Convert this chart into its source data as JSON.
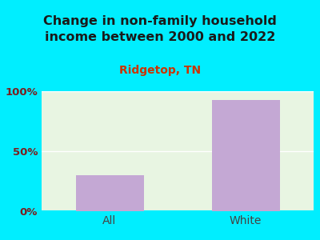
{
  "title": "Change in non-family household\nincome between 2000 and 2022",
  "subtitle": "Ridgetop, TN",
  "categories": [
    "All",
    "White"
  ],
  "values": [
    30,
    93
  ],
  "bar_color": "#c4a8d4",
  "background_color": "#00eeff",
  "plot_bg_color": "#e8f5e2",
  "title_color": "#1a1a1a",
  "subtitle_color": "#cc3300",
  "ytick_color": "#7a2020",
  "xtick_color": "#444444",
  "ylim": [
    0,
    100
  ],
  "yticks": [
    0,
    50,
    100
  ],
  "ytick_labels": [
    "0%",
    "50%",
    "100%"
  ],
  "title_fontsize": 11.5,
  "subtitle_fontsize": 10,
  "tick_fontsize": 9.5,
  "xlabel_fontsize": 10
}
